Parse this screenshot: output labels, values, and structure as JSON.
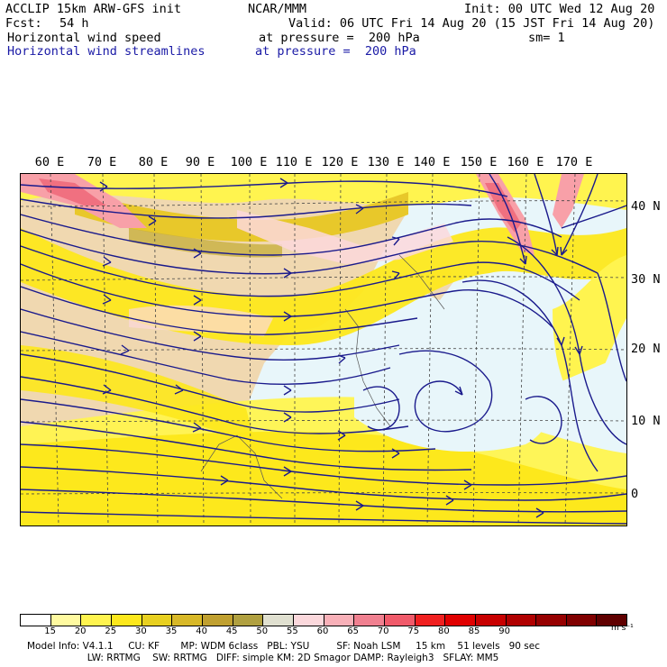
{
  "header": {
    "model": "ACCLIP 15km ARW-GFS init",
    "org": "NCAR/MMM",
    "init": "Init: 00 UTC Wed 12 Aug 20",
    "fcst_label": "Fcst:",
    "fcst_value": "54 h",
    "valid": "Valid: 06 UTC Fri 14 Aug 20 (15 JST Fri 14 Aug 20)",
    "field1": "Horizontal wind speed",
    "field1_level": "at pressure =  200 hPa",
    "field1_sm": "sm= 1",
    "field2": "Horizontal wind streamlines",
    "field2_level": "at pressure =  200 hPa"
  },
  "map": {
    "lon_labels": [
      "60 E",
      "70 E",
      "80 E",
      "90 E",
      "100 E",
      "110 E",
      "120 E",
      "130 E",
      "140 E",
      "150 E",
      "160 E",
      "170 E"
    ],
    "lat_labels": [
      "40 N",
      "30 N",
      "20 N",
      "10 N",
      "0"
    ],
    "wind_colors": {
      "light_blue": "#e8f6fa",
      "tan_land": "#f0d8b0",
      "yellow_20": "#fff44f",
      "yellow_25": "#fde81c",
      "gold_30": "#e8c82a",
      "olive_35": "#c8b040",
      "gray_45": "#e0e0d0",
      "pink_50": "#fbd8dc",
      "pink_55": "#f8a0a8",
      "red_60": "#f07080"
    },
    "streamline_color": "#1a1a8c"
  },
  "colorbar": {
    "colors": [
      "#ffffff",
      "#fffaa0",
      "#fff44f",
      "#fde81c",
      "#e8d020",
      "#d8b828",
      "#c0a030",
      "#b0a040",
      "#e0e0d0",
      "#fbd8dc",
      "#f8b0b8",
      "#f08090",
      "#f05a6a",
      "#f02020",
      "#e00000",
      "#c80000",
      "#b00000",
      "#960000",
      "#800000",
      "#600000"
    ],
    "labels": [
      "15",
      "20",
      "25",
      "30",
      "35",
      "40",
      "45",
      "50",
      "55",
      "60",
      "65",
      "70",
      "75",
      "80",
      "85",
      "90"
    ],
    "unit": "m s⁻¹"
  },
  "model_info": {
    "line1": "Model Info: V4.1.1     CU: KF       MP: WDM 6class   PBL: YSU         SF: Noah LSM     15 km    51 levels   90 sec",
    "line2": "                    LW: RRTMG    SW: RRTMG   DIFF: simple KM: 2D Smagor DAMP: Rayleigh3   SFLAY: MM5"
  }
}
